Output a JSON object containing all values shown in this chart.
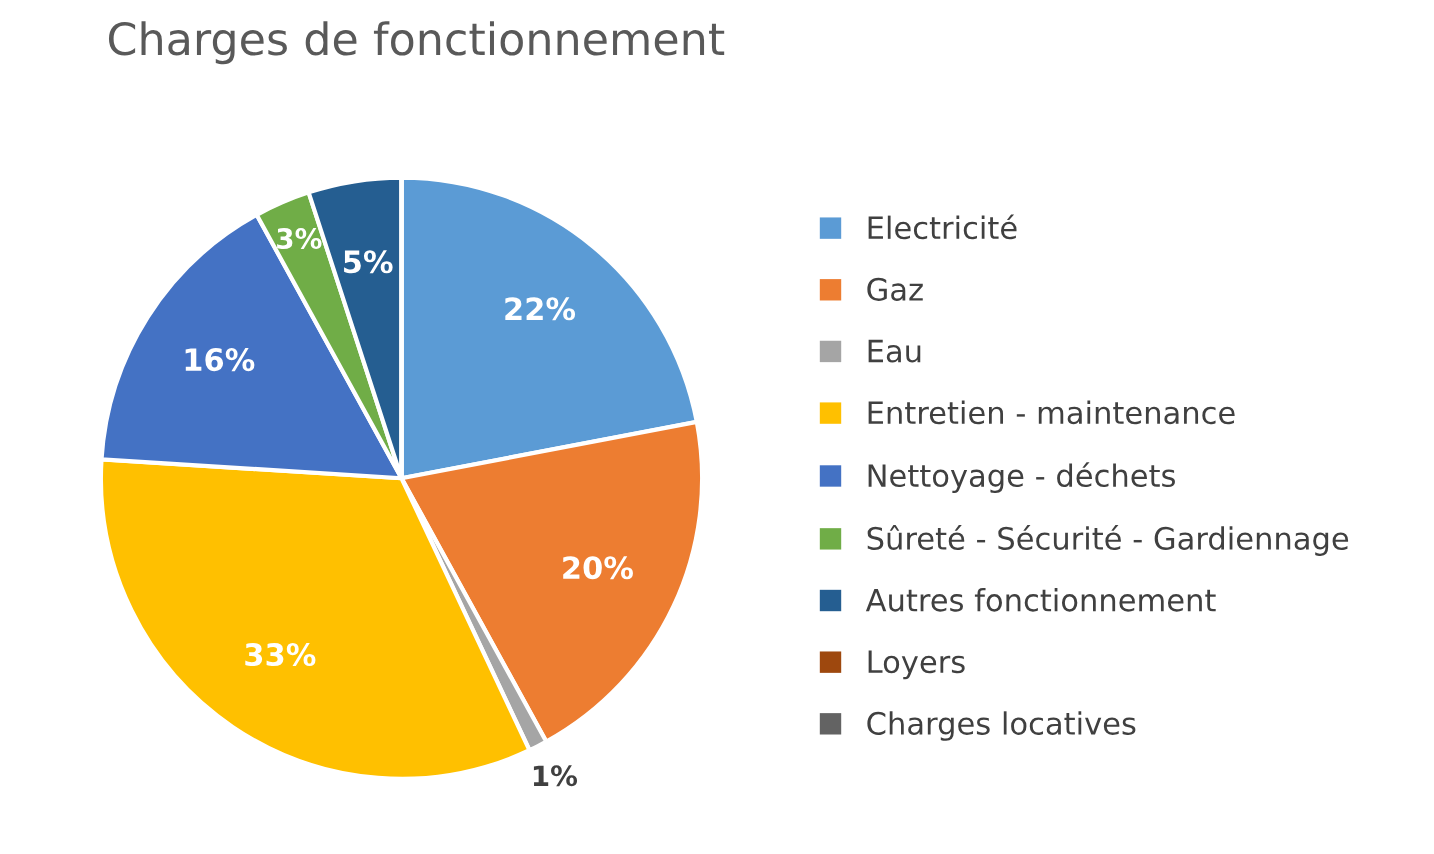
{
  "chart_data": {
    "type": "pie",
    "title": "Charges de fonctionnement",
    "categories": [
      "Electricité",
      "Gaz",
      "Eau",
      "Entretien - maintenance",
      "Nettoyage - déchets",
      "Sûreté - Sécurité - Gardiennage",
      "Autres fonctionnement",
      "Loyers",
      "Charges locatives"
    ],
    "values": [
      22,
      20,
      1,
      33,
      16,
      3,
      5,
      0,
      0
    ],
    "colors": [
      "#5b9bd5",
      "#ed7d31",
      "#a5a5a5",
      "#ffc000",
      "#4472c4",
      "#70ad47",
      "#255e91",
      "#9e480e",
      "#636363"
    ],
    "value_labels": [
      "22%",
      "20%",
      "1%",
      "33%",
      "16%",
      "3%",
      "5%",
      null,
      null
    ],
    "legend": "right"
  }
}
